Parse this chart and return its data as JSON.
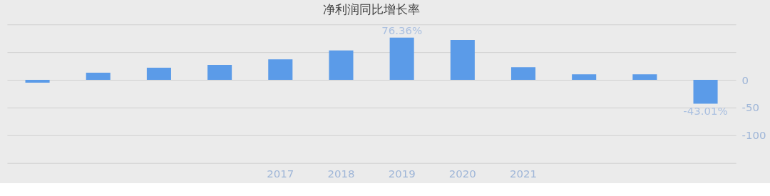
{
  "chart_data": {
    "type": "bar",
    "title": "净利润同比增长率",
    "categories": [
      null,
      null,
      null,
      null,
      "2017",
      "2018",
      "2019",
      "2020",
      "2021",
      null,
      null,
      null
    ],
    "values": [
      -5,
      13,
      22,
      27,
      37,
      53,
      76.36,
      72,
      23,
      10,
      10,
      -43.01
    ],
    "value_labels": [
      null,
      null,
      null,
      null,
      null,
      null,
      "76.36%",
      null,
      null,
      null,
      null,
      "-43.01%"
    ],
    "color": "#5b9be8",
    "ylim": [
      -150,
      100
    ],
    "yticks": [
      {
        "value": 100,
        "label": null
      },
      {
        "value": 50,
        "label": null
      },
      0,
      -50,
      -100,
      {
        "value": -150,
        "label": null
      }
    ],
    "grid": "y"
  }
}
